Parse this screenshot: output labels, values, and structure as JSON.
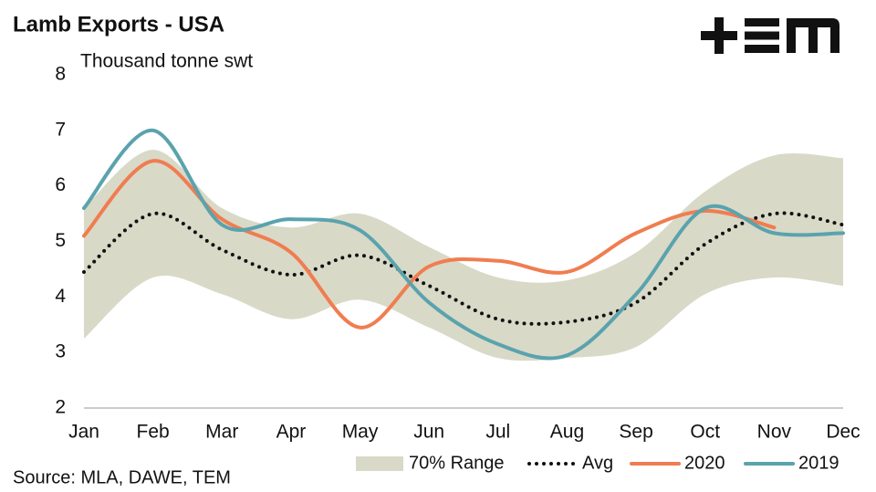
{
  "chart_data": {
    "type": "line",
    "title": "Lamb Exports - USA",
    "y_label": "Thousand tonne swt",
    "source": "Source: MLA, DAWE, TEM",
    "categories": [
      "Jan",
      "Feb",
      "Mar",
      "Apr",
      "May",
      "Jun",
      "Jul",
      "Aug",
      "Sep",
      "Oct",
      "Nov",
      "Dec"
    ],
    "ylim": [
      2,
      8
    ],
    "yticks": [
      2,
      3,
      4,
      5,
      6,
      7,
      8
    ],
    "grid": false,
    "legend": "bottom",
    "series": [
      {
        "name": "70% Range",
        "color": "#d9d9c8",
        "kind": "range",
        "lower": [
          3.25,
          4.35,
          4.05,
          3.6,
          3.95,
          3.45,
          2.9,
          2.9,
          3.1,
          4.05,
          4.35,
          4.2
        ],
        "upper": [
          5.6,
          6.65,
          5.6,
          5.25,
          5.5,
          4.9,
          4.35,
          4.3,
          4.8,
          5.9,
          6.55,
          6.5
        ]
      },
      {
        "name": "Avg",
        "color": "#111111",
        "kind": "dotted",
        "values": [
          4.45,
          5.5,
          4.85,
          4.4,
          4.75,
          4.2,
          3.6,
          3.55,
          3.9,
          4.95,
          5.5,
          5.3
        ]
      },
      {
        "name": "2020",
        "color": "#f07d50",
        "kind": "solid",
        "values": [
          5.1,
          6.45,
          5.4,
          4.8,
          3.45,
          4.55,
          4.65,
          4.45,
          5.15,
          5.55,
          5.25,
          null
        ]
      },
      {
        "name": "2019",
        "color": "#5aa3ad",
        "kind": "solid",
        "values": [
          5.6,
          7.0,
          5.3,
          5.4,
          5.2,
          3.9,
          3.15,
          2.95,
          4.05,
          5.6,
          5.15,
          5.15
        ]
      }
    ]
  }
}
